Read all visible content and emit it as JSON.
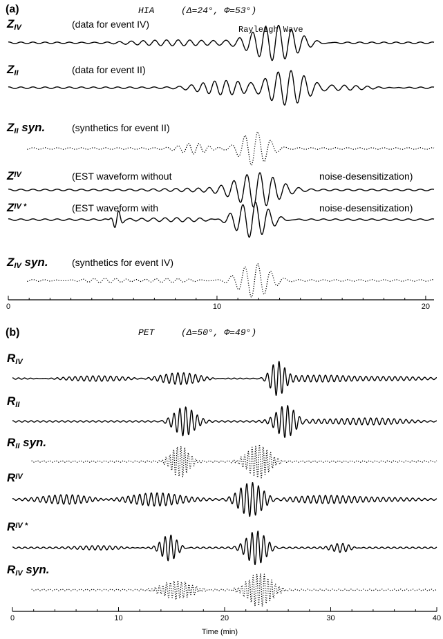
{
  "panels": [
    {
      "label": "(a)",
      "station": "HIA",
      "geometry_text": "(Δ=24°, Φ=53°)",
      "annotation": "Rayleigh Wave",
      "xlim": [
        0,
        20
      ],
      "ticks": [
        "0",
        "10",
        "20"
      ],
      "traces": [
        {
          "name": "Z",
          "sub": "IV",
          "sup": "",
          "suffix": "",
          "desc": "(data for event IV)",
          "desc2": "",
          "style": "solid",
          "packets": [
            {
              "center": 12.8,
              "width": 1.5,
              "amp": 1.0,
              "period": 0.62
            },
            {
              "center": 8.0,
              "width": 3.0,
              "amp": 0.12,
              "period": 0.55
            }
          ]
        },
        {
          "name": "Z",
          "sub": "II",
          "sup": "",
          "suffix": "",
          "desc": "(data for event II)",
          "desc2": "",
          "style": "solid",
          "packets": [
            {
              "center": 13.4,
              "width": 1.4,
              "amp": 1.0,
              "period": 0.62
            },
            {
              "center": 10.3,
              "width": 1.5,
              "amp": 0.35,
              "period": 0.55
            },
            {
              "center": 16.5,
              "width": 2.0,
              "amp": 0.14,
              "period": 0.55
            }
          ]
        },
        {
          "name": "Z",
          "sub": "II",
          "sup": "",
          "suffix": " syn.",
          "desc": "(synthetics for event II)",
          "desc2": "",
          "style": "dotted",
          "packets": [
            {
              "center": 11.8,
              "width": 0.9,
              "amp": 1.0,
              "period": 0.62
            },
            {
              "center": 9.0,
              "width": 0.9,
              "amp": 0.3,
              "period": 0.5
            }
          ]
        },
        {
          "name": "Z",
          "sub": "",
          "sup": "IV",
          "suffix": "",
          "desc": "(EST waveform without",
          "desc2": "noise-desensitization)",
          "style": "solid",
          "packets": [
            {
              "center": 11.9,
              "width": 1.3,
              "amp": 1.0,
              "period": 0.62
            },
            {
              "center": 9.5,
              "width": 2.0,
              "amp": 0.14,
              "period": 0.55
            }
          ]
        },
        {
          "name": "Z",
          "sub": "",
          "sup": "IV *",
          "suffix": "",
          "desc": "(EST waveform with",
          "desc2": "noise-desensitization)",
          "style": "solid",
          "packets": [
            {
              "center": 11.7,
              "width": 1.1,
              "amp": 1.0,
              "period": 0.62
            },
            {
              "center": 5.2,
              "width": 0.25,
              "amp": 0.5,
              "period": 0.4
            },
            {
              "center": 9.0,
              "width": 2.5,
              "amp": 0.1,
              "period": 0.55
            }
          ]
        },
        {
          "name": "Z",
          "sub": "IV",
          "suffix": " syn.",
          "sup": "",
          "desc": "(synthetics for event IV)",
          "desc2": "",
          "style": "dotted",
          "packets": [
            {
              "center": 11.8,
              "width": 1.0,
              "amp": 1.0,
              "period": 0.62
            },
            {
              "center": 6.0,
              "width": 3.0,
              "amp": 0.1,
              "period": 0.5
            }
          ]
        }
      ]
    },
    {
      "label": "(b)",
      "station": "PET",
      "geometry_text": "(Δ=50°, Φ=49°)",
      "annotation": "",
      "xlim": [
        0,
        40
      ],
      "ticks": [
        "0",
        "10",
        "20",
        "30",
        "40"
      ],
      "xlabel": "Time (min)",
      "traces": [
        {
          "name": "R",
          "sub": "IV",
          "sup": "",
          "suffix": "",
          "desc": "",
          "desc2": "",
          "style": "solid",
          "packets": [
            {
              "center": 25.0,
              "width": 0.9,
              "amp": 1.0,
              "period": 0.55
            },
            {
              "center": 16.0,
              "width": 2.5,
              "amp": 0.35,
              "period": 0.55
            },
            {
              "center": 31.0,
              "width": 6.0,
              "amp": 0.2,
              "period": 0.55
            },
            {
              "center": 8.0,
              "width": 5.0,
              "amp": 0.12,
              "period": 0.55
            }
          ]
        },
        {
          "name": "R",
          "sub": "II",
          "sup": "",
          "suffix": "",
          "desc": "",
          "desc2": "",
          "style": "solid",
          "packets": [
            {
              "center": 16.2,
              "width": 1.3,
              "amp": 0.85,
              "period": 0.55
            },
            {
              "center": 25.8,
              "width": 1.2,
              "amp": 1.0,
              "period": 0.55
            },
            {
              "center": 32.0,
              "width": 5.0,
              "amp": 0.22,
              "period": 0.55
            }
          ]
        },
        {
          "name": "R",
          "sub": "II",
          "sup": "",
          "suffix": " syn.",
          "desc": "",
          "desc2": "",
          "style": "dotted",
          "packets": [
            {
              "center": 15.8,
              "width": 1.1,
              "amp": 0.95,
              "period": 0.35
            },
            {
              "center": 23.2,
              "width": 1.4,
              "amp": 1.0,
              "period": 0.35
            }
          ]
        },
        {
          "name": "R",
          "sub": "",
          "sup": "IV",
          "suffix": "",
          "desc": "",
          "desc2": "",
          "style": "solid",
          "packets": [
            {
              "center": 22.5,
              "width": 1.5,
              "amp": 1.0,
              "period": 0.55
            },
            {
              "center": 13.5,
              "width": 3.0,
              "amp": 0.45,
              "period": 0.55
            },
            {
              "center": 5.5,
              "width": 3.0,
              "amp": 0.3,
              "period": 0.55
            },
            {
              "center": 31.0,
              "width": 5.0,
              "amp": 0.25,
              "period": 0.55
            }
          ]
        },
        {
          "name": "R",
          "sub": "",
          "sup": "IV *",
          "suffix": "",
          "desc": "",
          "desc2": "",
          "style": "solid",
          "packets": [
            {
              "center": 23.0,
              "width": 1.2,
              "amp": 1.0,
              "period": 0.55
            },
            {
              "center": 14.8,
              "width": 1.0,
              "amp": 0.8,
              "period": 0.55
            },
            {
              "center": 31.0,
              "width": 1.2,
              "amp": 0.3,
              "period": 0.55
            },
            {
              "center": 9.0,
              "width": 3.0,
              "amp": 0.12,
              "period": 0.55
            }
          ]
        },
        {
          "name": "R",
          "sub": "IV",
          "sup": "",
          "suffix": " syn.",
          "desc": "",
          "desc2": "",
          "style": "dotted",
          "packets": [
            {
              "center": 23.3,
              "width": 1.5,
              "amp": 1.0,
              "period": 0.35
            },
            {
              "center": 15.5,
              "width": 1.8,
              "amp": 0.55,
              "period": 0.35
            }
          ]
        }
      ]
    }
  ],
  "chart_data": [
    {
      "type": "line",
      "panel": "(a)",
      "title": "HIA (Δ=24°, Φ=53°)",
      "xlim": [
        0,
        20
      ],
      "x_ticks": [
        0,
        10,
        20
      ],
      "annotation": "Rayleigh Wave",
      "series": [
        {
          "name": "Z_IV",
          "description": "(data for event IV)"
        },
        {
          "name": "Z_II",
          "description": "(data for event II)"
        },
        {
          "name": "Z_II syn.",
          "description": "(synthetics for event II)"
        },
        {
          "name": "Z^IV",
          "description": "(EST waveform without noise-desensitization)"
        },
        {
          "name": "Z^IV *",
          "description": "(EST waveform with noise-desensitization)"
        },
        {
          "name": "Z_IV syn.",
          "description": "(synthetics for event IV)"
        }
      ]
    },
    {
      "type": "line",
      "panel": "(b)",
      "title": "PET (Δ=50°, Φ=49°)",
      "xlabel": "Time (min)",
      "xlim": [
        0,
        40
      ],
      "x_ticks": [
        0,
        10,
        20,
        30,
        40
      ],
      "series": [
        {
          "name": "R_IV"
        },
        {
          "name": "R_II"
        },
        {
          "name": "R_II syn."
        },
        {
          "name": "R^IV"
        },
        {
          "name": "R^IV *"
        },
        {
          "name": "R_IV syn."
        }
      ]
    }
  ]
}
